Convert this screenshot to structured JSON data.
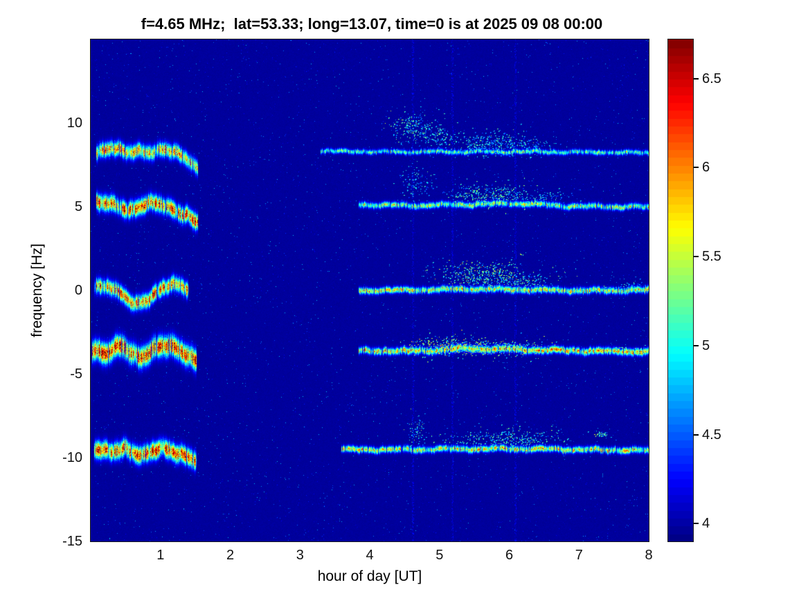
{
  "chart_data": {
    "type": "heatmap",
    "variant": "spectrogram",
    "title": "f=4.65 MHz;  lat=53.33; long=13.07, time=0 is at 2025 09 08 00:00",
    "xlabel": "hour of day [UT]",
    "ylabel": "frequency [Hz]",
    "xlim": [
      0,
      8
    ],
    "ylim": [
      -15,
      15
    ],
    "xticks": [
      1,
      2,
      3,
      4,
      5,
      6,
      7,
      8
    ],
    "yticks": [
      10,
      5,
      0,
      -5,
      -10,
      -15
    ],
    "grid": false,
    "colorbar": {
      "colormap": "jet",
      "min": 3.9,
      "max": 6.72,
      "ticks": [
        4,
        4.5,
        5,
        5.5,
        6,
        6.5
      ],
      "position": "right",
      "levels": 64
    },
    "background_value": 3.98,
    "speckle": {
      "count": 6500,
      "max_boost": 0.8
    },
    "streak_times": [
      4.62,
      5.18,
      6.08
    ],
    "bands": [
      {
        "label": "upper trace ~8.4 Hz",
        "segments": [
          {
            "path": [
              [
                0.08,
                8.35
              ],
              [
                0.3,
                8.5
              ],
              [
                0.5,
                8.2
              ],
              [
                0.7,
                8.45
              ],
              [
                0.9,
                8.3
              ],
              [
                1.1,
                8.35
              ],
              [
                1.25,
                8.15
              ],
              [
                1.4,
                7.95
              ],
              [
                1.52,
                7.35
              ]
            ],
            "sigma": 0.27,
            "peak": 2.0,
            "wiggle": 0.1
          },
          {
            "path": [
              [
                3.3,
                8.35
              ],
              [
                4.2,
                8.3
              ],
              [
                5.2,
                8.3
              ],
              [
                6.4,
                8.3
              ],
              [
                7.2,
                8.28
              ],
              [
                8.0,
                8.25
              ]
            ],
            "sigma": 0.09,
            "peak": 1.35,
            "wiggle": 0.03
          }
        ],
        "blobs": [
          {
            "t": 4.62,
            "f": 9.7,
            "st": 0.18,
            "sf": 0.45,
            "n": 200,
            "peak": 1.6
          },
          {
            "t": 4.95,
            "f": 9.3,
            "st": 0.15,
            "sf": 0.4,
            "n": 120,
            "peak": 1.5
          },
          {
            "t": 5.75,
            "f": 8.8,
            "st": 0.3,
            "sf": 0.35,
            "n": 320,
            "peak": 1.5
          },
          {
            "t": 6.2,
            "f": 8.6,
            "st": 0.25,
            "sf": 0.25,
            "n": 140,
            "peak": 1.2
          }
        ]
      },
      {
        "label": "trace ~5 Hz",
        "segments": [
          {
            "path": [
              [
                0.08,
                5.3
              ],
              [
                0.3,
                5.1
              ],
              [
                0.55,
                4.85
              ],
              [
                0.8,
                5.2
              ],
              [
                1.0,
                5.1
              ],
              [
                1.2,
                4.85
              ],
              [
                1.38,
                4.6
              ],
              [
                1.52,
                4.05
              ]
            ],
            "sigma": 0.3,
            "peak": 2.4,
            "wiggle": 0.1
          },
          {
            "path": [
              [
                3.85,
                5.15
              ],
              [
                4.6,
                5.1
              ],
              [
                5.4,
                5.15
              ],
              [
                6.1,
                5.2
              ],
              [
                7.0,
                5.05
              ],
              [
                8.0,
                5.0
              ]
            ],
            "sigma": 0.11,
            "peak": 1.6,
            "wiggle": 0.04
          }
        ],
        "blobs": [
          {
            "t": 4.65,
            "f": 6.4,
            "st": 0.12,
            "sf": 0.5,
            "n": 110,
            "peak": 1.35
          },
          {
            "t": 5.7,
            "f": 5.75,
            "st": 0.3,
            "sf": 0.35,
            "n": 300,
            "peak": 1.7
          },
          {
            "t": 6.35,
            "f": 5.5,
            "st": 0.28,
            "sf": 0.25,
            "n": 150,
            "peak": 1.3
          }
        ]
      },
      {
        "label": "trace ~0 Hz",
        "segments": [
          {
            "path": [
              [
                0.05,
                0.25
              ],
              [
                0.25,
                0.35
              ],
              [
                0.45,
                -0.25
              ],
              [
                0.62,
                -0.9
              ],
              [
                0.82,
                -0.45
              ],
              [
                1.0,
                0.15
              ],
              [
                1.2,
                0.35
              ],
              [
                1.38,
                0.1
              ]
            ],
            "sigma": 0.28,
            "peak": 2.3,
            "wiggle": 0.08
          },
          {
            "path": [
              [
                3.85,
                0.0
              ],
              [
                4.7,
                0.05
              ],
              [
                5.5,
                0.1
              ],
              [
                6.3,
                0.05
              ],
              [
                7.2,
                0.0
              ],
              [
                8.0,
                0.05
              ]
            ],
            "sigma": 0.12,
            "peak": 1.75,
            "wiggle": 0.04
          }
        ],
        "blobs": [
          {
            "t": 5.55,
            "f": 0.95,
            "st": 0.32,
            "sf": 0.45,
            "n": 380,
            "peak": 1.9
          },
          {
            "t": 6.15,
            "f": 0.55,
            "st": 0.28,
            "sf": 0.3,
            "n": 200,
            "peak": 1.6
          },
          {
            "t": 7.75,
            "f": 0.15,
            "st": 0.2,
            "sf": 0.15,
            "n": 90,
            "peak": 1.5
          }
        ]
      },
      {
        "label": "trace ~-3.6 Hz",
        "segments": [
          {
            "path": [
              [
                0.02,
                -3.45
              ],
              [
                0.22,
                -3.85
              ],
              [
                0.45,
                -3.3
              ],
              [
                0.7,
                -3.9
              ],
              [
                0.95,
                -3.5
              ],
              [
                1.15,
                -3.3
              ],
              [
                1.35,
                -3.6
              ],
              [
                1.5,
                -4.15
              ]
            ],
            "sigma": 0.38,
            "peak": 2.55,
            "wiggle": 0.12
          },
          {
            "path": [
              [
                3.85,
                -3.6
              ],
              [
                4.7,
                -3.6
              ],
              [
                5.4,
                -3.45
              ],
              [
                6.0,
                -3.5
              ],
              [
                7.0,
                -3.6
              ],
              [
                8.0,
                -3.65
              ]
            ],
            "sigma": 0.13,
            "peak": 1.95,
            "wiggle": 0.04
          }
        ],
        "blobs": [
          {
            "t": 5.2,
            "f": -3.35,
            "st": 0.35,
            "sf": 0.3,
            "n": 380,
            "peak": 2.2
          },
          {
            "t": 6.05,
            "f": -3.4,
            "st": 0.28,
            "sf": 0.25,
            "n": 200,
            "peak": 1.9
          },
          {
            "t": 7.7,
            "f": -3.6,
            "st": 0.18,
            "sf": 0.12,
            "n": 80,
            "peak": 1.7
          }
        ]
      },
      {
        "label": "trace ~-9.5 Hz",
        "segments": [
          {
            "path": [
              [
                0.05,
                -9.4
              ],
              [
                0.28,
                -9.75
              ],
              [
                0.5,
                -9.4
              ],
              [
                0.75,
                -9.8
              ],
              [
                1.0,
                -9.5
              ],
              [
                1.2,
                -9.6
              ],
              [
                1.38,
                -9.8
              ],
              [
                1.5,
                -10.1
              ]
            ],
            "sigma": 0.32,
            "peak": 2.45,
            "wiggle": 0.1
          },
          {
            "path": [
              [
                3.6,
                -9.5
              ],
              [
                4.5,
                -9.5
              ],
              [
                5.4,
                -9.45
              ],
              [
                6.3,
                -9.45
              ],
              [
                7.2,
                -9.5
              ],
              [
                8.0,
                -9.55
              ]
            ],
            "sigma": 0.12,
            "peak": 1.8,
            "wiggle": 0.04
          }
        ],
        "blobs": [
          {
            "t": 4.67,
            "f": -8.4,
            "st": 0.07,
            "sf": 0.55,
            "n": 70,
            "peak": 1.45
          },
          {
            "t": 6.0,
            "f": -8.85,
            "st": 0.45,
            "sf": 0.3,
            "n": 330,
            "peak": 1.6
          },
          {
            "t": 7.32,
            "f": -8.55,
            "st": 0.06,
            "sf": 0.1,
            "n": 35,
            "peak": 1.7
          }
        ]
      }
    ]
  }
}
